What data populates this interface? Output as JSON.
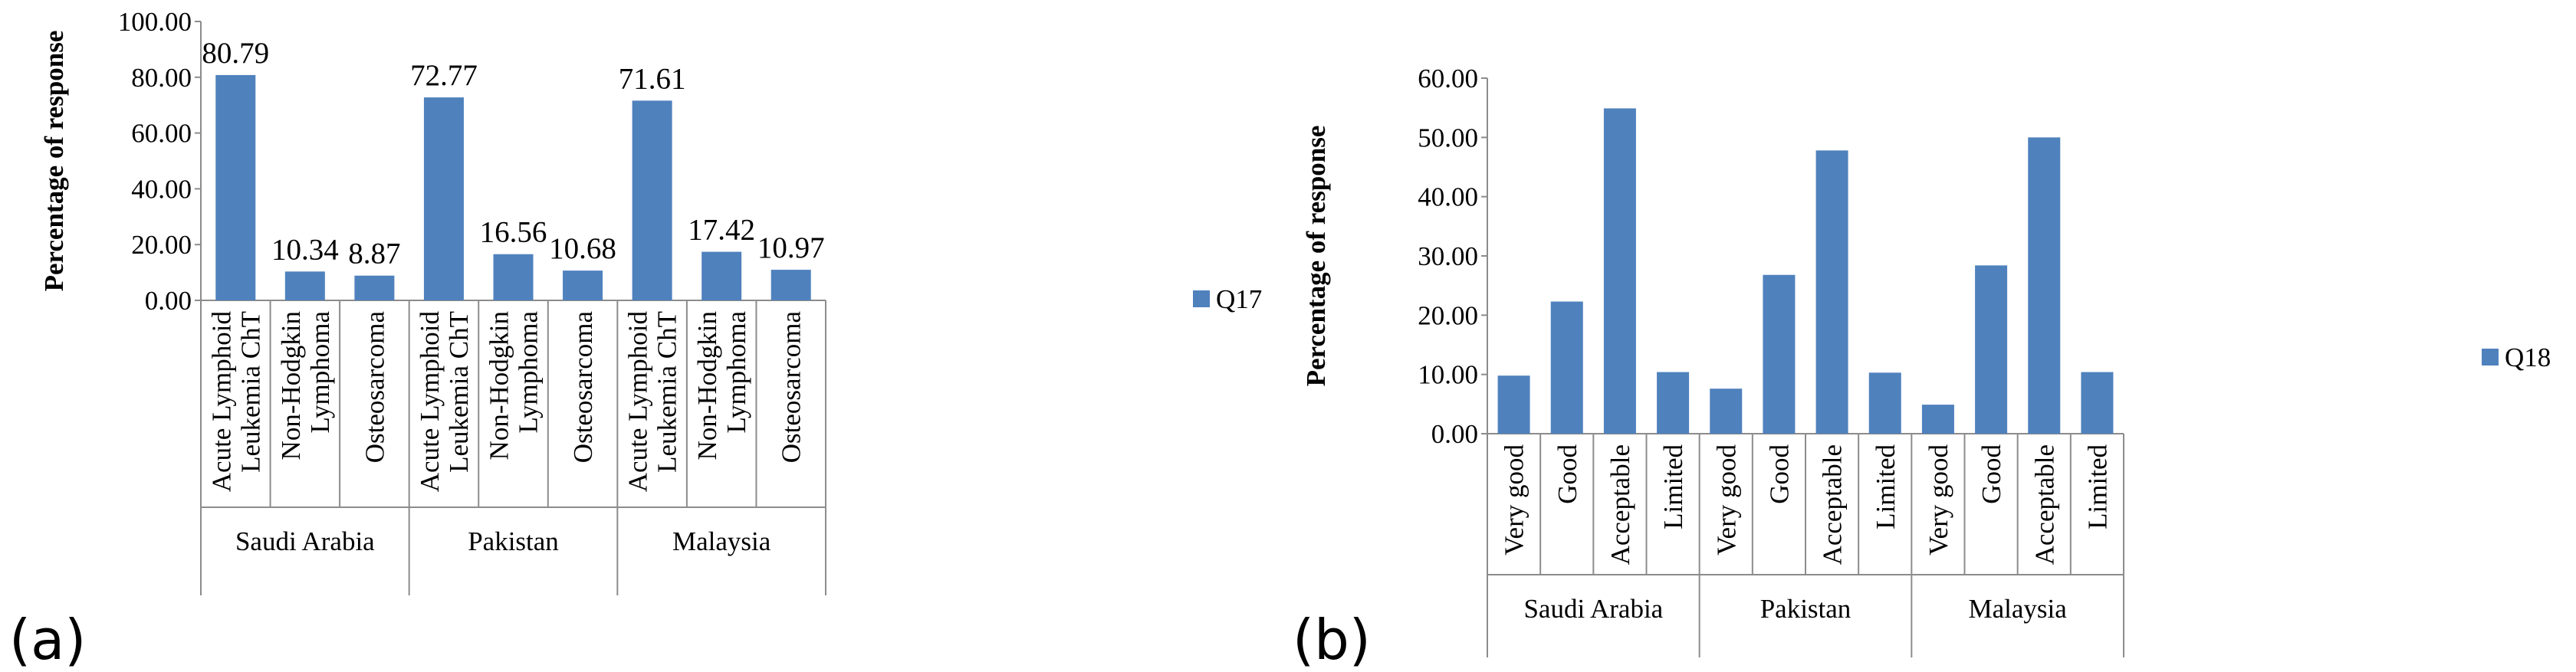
{
  "chart_data": [
    {
      "type": "bar",
      "panel_label": "(a)",
      "ylabel": "Percentage of response",
      "ylim": [
        0,
        100
      ],
      "yticks": [
        "0.00",
        "20.00",
        "40.00",
        "60.00",
        "80.00",
        "100.00"
      ],
      "groups": [
        {
          "name": "Saudi Arabia",
          "categories": [
            [
              "Acute Lymphoid",
              "Leukemia ChT"
            ],
            [
              "Non-Hodgkin",
              "Lymphoma"
            ],
            [
              "Osteosarcoma"
            ]
          ],
          "values": [
            80.79,
            10.34,
            8.87
          ],
          "labels": [
            "80.79",
            "10.34",
            "8.87"
          ]
        },
        {
          "name": "Pakistan",
          "categories": [
            [
              "Acute Lymphoid",
              "Leukemia ChT"
            ],
            [
              "Non-Hodgkin",
              "Lymphoma"
            ],
            [
              "Osteosarcoma"
            ]
          ],
          "values": [
            72.77,
            16.56,
            10.68
          ],
          "labels": [
            "72.77",
            "16.56",
            "10.68"
          ]
        },
        {
          "name": "Malaysia",
          "categories": [
            [
              "Acute Lymphoid",
              "Leukemia ChT"
            ],
            [
              "Non-Hodgkin",
              "Lymphoma"
            ],
            [
              "Osteosarcoma"
            ]
          ],
          "values": [
            71.61,
            17.42,
            10.97
          ],
          "labels": [
            "71.61",
            "17.42",
            "10.97"
          ]
        }
      ],
      "series": [
        {
          "name": "Q17"
        }
      ],
      "legend": "right",
      "color": "#4f81bd",
      "grid": false
    },
    {
      "type": "bar",
      "panel_label": "(b)",
      "ylabel": "Percentage of response",
      "ylim": [
        0,
        60
      ],
      "yticks": [
        "0.00",
        "10.00",
        "20.00",
        "30.00",
        "40.00",
        "50.00",
        "60.00"
      ],
      "groups": [
        {
          "name": "Saudi Arabia",
          "categories": [
            [
              "Very good"
            ],
            [
              "Good"
            ],
            [
              "Acceptable"
            ],
            [
              "Limited"
            ]
          ],
          "values": [
            9.8,
            22.3,
            54.9,
            10.4
          ]
        },
        {
          "name": "Pakistan",
          "categories": [
            [
              "Very good"
            ],
            [
              "Good"
            ],
            [
              "Acceptable"
            ],
            [
              "Limited"
            ]
          ],
          "values": [
            7.6,
            26.8,
            47.8,
            10.3
          ]
        },
        {
          "name": "Malaysia",
          "categories": [
            [
              "Very good"
            ],
            [
              "Good"
            ],
            [
              "Acceptable"
            ],
            [
              "Limited"
            ]
          ],
          "values": [
            4.9,
            28.4,
            50.0,
            10.4
          ]
        }
      ],
      "series": [
        {
          "name": "Q18"
        }
      ],
      "legend": "right",
      "color": "#4f81bd",
      "grid": false
    }
  ]
}
